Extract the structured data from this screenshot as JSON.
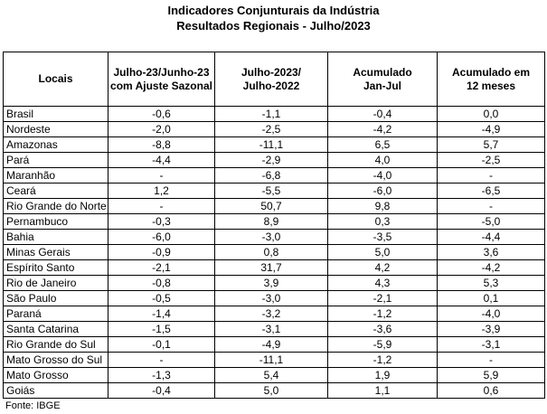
{
  "title": {
    "line1": "Indicadores Conjunturais da Indústria",
    "line2": "Resultados Regionais - Julho/2023"
  },
  "table": {
    "headers": [
      "Locais",
      "Julho-23/Junho-23\ncom Ajuste Sazonal",
      "Julho-2023/\nJulho-2022",
      "Acumulado\nJan-Jul",
      "Acumulado em\n12 meses"
    ],
    "rows": [
      {
        "local": "Brasil",
        "values": [
          "-0,6",
          "-1,1",
          "-0,4",
          "0,0"
        ]
      },
      {
        "local": "Nordeste",
        "values": [
          "-2,0",
          "-2,5",
          "-4,2",
          "-4,9"
        ]
      },
      {
        "local": "Amazonas",
        "values": [
          "-8,8",
          "-11,1",
          "6,5",
          "5,7"
        ]
      },
      {
        "local": "Pará",
        "values": [
          "-4,4",
          "-2,9",
          "4,0",
          "-2,5"
        ]
      },
      {
        "local": "Maranhão",
        "values": [
          "-",
          "-6,8",
          "-4,0",
          "-"
        ]
      },
      {
        "local": "Ceará",
        "values": [
          "1,2",
          "-5,5",
          "-6,0",
          "-6,5"
        ]
      },
      {
        "local": "Rio Grande do Norte",
        "values": [
          "-",
          "50,7",
          "9,8",
          "-"
        ]
      },
      {
        "local": "Pernambuco",
        "values": [
          "-0,3",
          "8,9",
          "0,3",
          "-5,0"
        ]
      },
      {
        "local": "Bahia",
        "values": [
          "-6,0",
          "-3,0",
          "-3,5",
          "-4,4"
        ]
      },
      {
        "local": "Minas Gerais",
        "values": [
          "-0,9",
          "0,8",
          "5,0",
          "3,6"
        ]
      },
      {
        "local": "Espírito Santo",
        "values": [
          "-2,1",
          "31,7",
          "4,2",
          "-4,2"
        ]
      },
      {
        "local": "Rio de Janeiro",
        "values": [
          "-0,8",
          "3,9",
          "4,3",
          "5,3"
        ]
      },
      {
        "local": "São Paulo",
        "values": [
          "-0,5",
          "-3,0",
          "-2,1",
          "0,1"
        ]
      },
      {
        "local": "Paraná",
        "values": [
          "-1,4",
          "-3,2",
          "-1,2",
          "-4,0"
        ]
      },
      {
        "local": "Santa Catarina",
        "values": [
          "-1,5",
          "-3,1",
          "-3,6",
          "-3,9"
        ]
      },
      {
        "local": "Rio Grande do Sul",
        "values": [
          "-0,1",
          "-4,9",
          "-5,9",
          "-3,1"
        ]
      },
      {
        "local": "Mato Grosso do Sul",
        "values": [
          "-",
          "-11,1",
          "-1,2",
          "-"
        ]
      },
      {
        "local": "Mato Grosso",
        "values": [
          "-1,3",
          "5,4",
          "1,9",
          "5,9"
        ]
      },
      {
        "local": "Goiás",
        "values": [
          "-0,4",
          "5,0",
          "1,1",
          "0,6"
        ]
      }
    ]
  },
  "chart_data": {
    "type": "table",
    "title": "Indicadores Conjunturais da Indústria",
    "subtitle": "Resultados Regionais - Julho/2023",
    "columns": [
      "Locais",
      "Julho-23/Junho-23 com Ajuste Sazonal",
      "Julho-2023/Julho-2022",
      "Acumulado Jan-Jul",
      "Acumulado em 12 meses"
    ],
    "rows": [
      [
        "Brasil",
        -0.6,
        -1.1,
        -0.4,
        0.0
      ],
      [
        "Nordeste",
        -2.0,
        -2.5,
        -4.2,
        -4.9
      ],
      [
        "Amazonas",
        -8.8,
        -11.1,
        6.5,
        5.7
      ],
      [
        "Pará",
        -4.4,
        -2.9,
        4.0,
        -2.5
      ],
      [
        "Maranhão",
        null,
        -6.8,
        -4.0,
        null
      ],
      [
        "Ceará",
        1.2,
        -5.5,
        -6.0,
        -6.5
      ],
      [
        "Rio Grande do Norte",
        null,
        50.7,
        9.8,
        null
      ],
      [
        "Pernambuco",
        -0.3,
        8.9,
        0.3,
        -5.0
      ],
      [
        "Bahia",
        -6.0,
        -3.0,
        -3.5,
        -4.4
      ],
      [
        "Minas Gerais",
        -0.9,
        0.8,
        5.0,
        3.6
      ],
      [
        "Espírito Santo",
        -2.1,
        31.7,
        4.2,
        -4.2
      ],
      [
        "Rio de Janeiro",
        -0.8,
        3.9,
        4.3,
        5.3
      ],
      [
        "São Paulo",
        -0.5,
        -3.0,
        -2.1,
        0.1
      ],
      [
        "Paraná",
        -1.4,
        -3.2,
        -1.2,
        -4.0
      ],
      [
        "Santa Catarina",
        -1.5,
        -3.1,
        -3.6,
        -3.9
      ],
      [
        "Rio Grande do Sul",
        -0.1,
        -4.9,
        -5.9,
        -3.1
      ],
      [
        "Mato Grosso do Sul",
        null,
        -11.1,
        -1.2,
        null
      ],
      [
        "Mato Grosso",
        -1.3,
        5.4,
        1.9,
        5.9
      ],
      [
        "Goiás",
        -0.4,
        5.0,
        1.1,
        0.6
      ]
    ],
    "source": "Fonte: IBGE"
  },
  "footer": {
    "source": "Fonte: IBGE"
  }
}
